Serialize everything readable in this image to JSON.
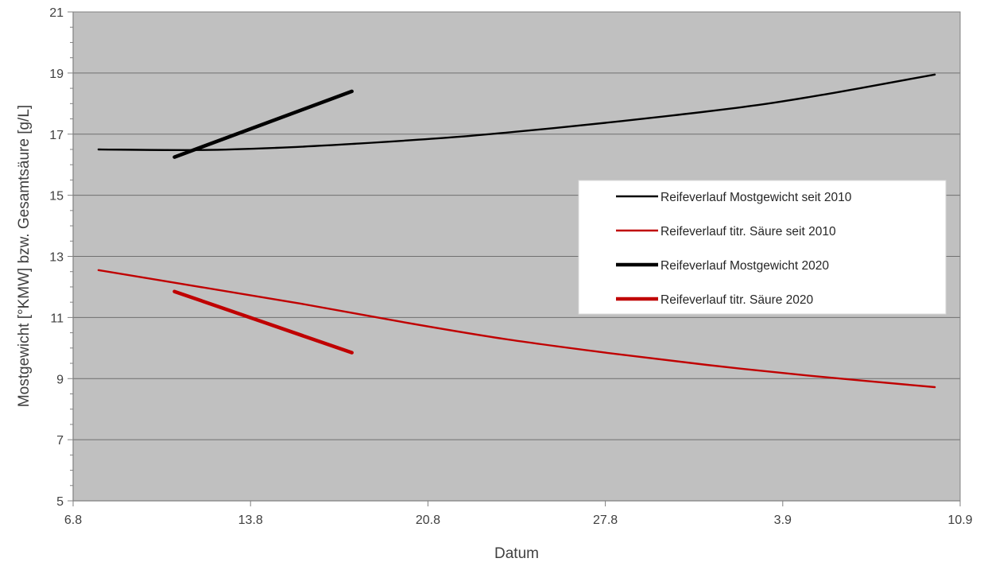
{
  "chart_data": {
    "type": "line",
    "title": "",
    "xlabel": "Datum",
    "ylabel": "Mostgewicht [°KMW] bzw. Gesamtsäure [g/L]",
    "x_ticks": [
      "6.8",
      "13.8",
      "20.8",
      "27.8",
      "3.9",
      "10.9"
    ],
    "x_tick_dates": [
      "2020-08-06",
      "2020-08-13",
      "2020-08-20",
      "2020-08-27",
      "2020-09-03",
      "2020-09-10"
    ],
    "xlim": [
      "2020-08-06",
      "2020-09-10"
    ],
    "ylim": [
      5,
      21
    ],
    "y_major_ticks": [
      5,
      7,
      9,
      11,
      13,
      15,
      17,
      19,
      21
    ],
    "y_minor_step": 0.5,
    "grid": "horizontal major",
    "plot_background": "#c0c0c0",
    "legend_position": "right",
    "series": [
      {
        "name": "Reifeverlauf Mostgewicht seit 2010",
        "color": "#000000",
        "weight": "thin",
        "points": [
          [
            "2020-08-07",
            16.5
          ],
          [
            "2020-08-11",
            16.48
          ],
          [
            "2020-08-14",
            16.55
          ],
          [
            "2020-08-17",
            16.68
          ],
          [
            "2020-08-21",
            16.9
          ],
          [
            "2020-08-25",
            17.2
          ],
          [
            "2020-08-29",
            17.55
          ],
          [
            "2020-09-02",
            17.95
          ],
          [
            "2020-09-05",
            18.35
          ],
          [
            "2020-09-08",
            18.8
          ],
          [
            "2020-09-09",
            18.95
          ]
        ]
      },
      {
        "name": "Reifeverlauf titr. Säure seit 2010",
        "color": "#c00000",
        "weight": "thin",
        "points": [
          [
            "2020-08-07",
            12.55
          ],
          [
            "2020-08-11",
            12.0
          ],
          [
            "2020-08-15",
            11.45
          ],
          [
            "2020-08-19",
            10.85
          ],
          [
            "2020-08-23",
            10.3
          ],
          [
            "2020-08-27",
            9.85
          ],
          [
            "2020-08-31",
            9.45
          ],
          [
            "2020-09-04",
            9.1
          ],
          [
            "2020-09-09",
            8.72
          ]
        ]
      },
      {
        "name": "Reifeverlauf Mostgewicht 2020",
        "color": "#000000",
        "weight": "thick",
        "points": [
          [
            "2020-08-10",
            16.25
          ],
          [
            "2020-08-17",
            18.4
          ]
        ]
      },
      {
        "name": "Reifeverlauf titr. Säure 2020",
        "color": "#c00000",
        "weight": "thick",
        "points": [
          [
            "2020-08-10",
            11.85
          ],
          [
            "2020-08-17",
            9.85
          ]
        ]
      }
    ]
  }
}
